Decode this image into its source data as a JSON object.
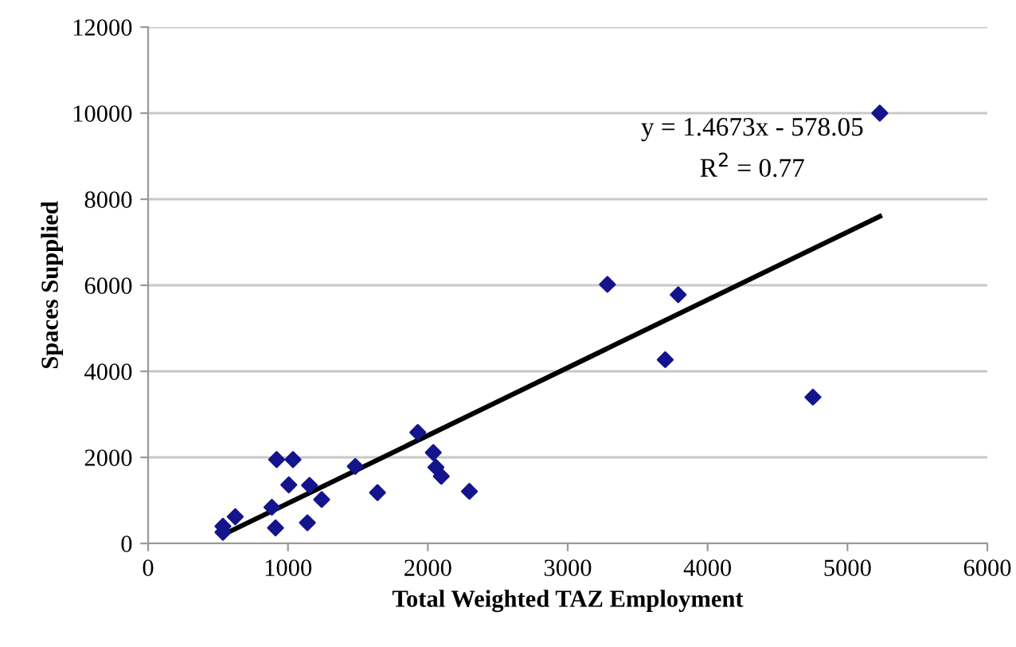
{
  "chart_data": {
    "type": "scatter",
    "xlabel": "Total Weighted TAZ Employment",
    "ylabel": "Spaces Supplied",
    "annotations": [
      "y = 1.4673x - 578.05",
      "R$^{2}$ = 0.77"
    ],
    "xlim": [
      0,
      6000
    ],
    "xticks": [
      0,
      1000,
      2000,
      3000,
      4000,
      5000,
      6000
    ],
    "ylim": [
      0,
      12000
    ],
    "yticks": [
      0,
      2000,
      4000,
      6000,
      8000,
      10000,
      12000
    ],
    "grid": "y",
    "marker": "diamond",
    "series": [
      {
        "color": "#14148c",
        "x": [
          535,
          535,
          623,
          885,
          911,
          919,
          1036,
          1006,
          1154,
          1139,
          1241,
          1481,
          1640,
          1928,
          2039,
          2058,
          2096,
          2297,
          3284,
          3790,
          3697,
          4753,
          5231
        ],
        "values": [
          400,
          260,
          620,
          840,
          360,
          1950,
          1950,
          1360,
          1350,
          480,
          1020,
          1790,
          1180,
          2580,
          2110,
          1770,
          1560,
          1210,
          6020,
          5780,
          4270,
          3400,
          10000
        ]
      },
      {
        "type": "line",
        "color": "#000000",
        "x": [
          535,
          5231
        ],
        "values": [
          200,
          7600
        ],
        "marker": "none"
      }
    ]
  }
}
